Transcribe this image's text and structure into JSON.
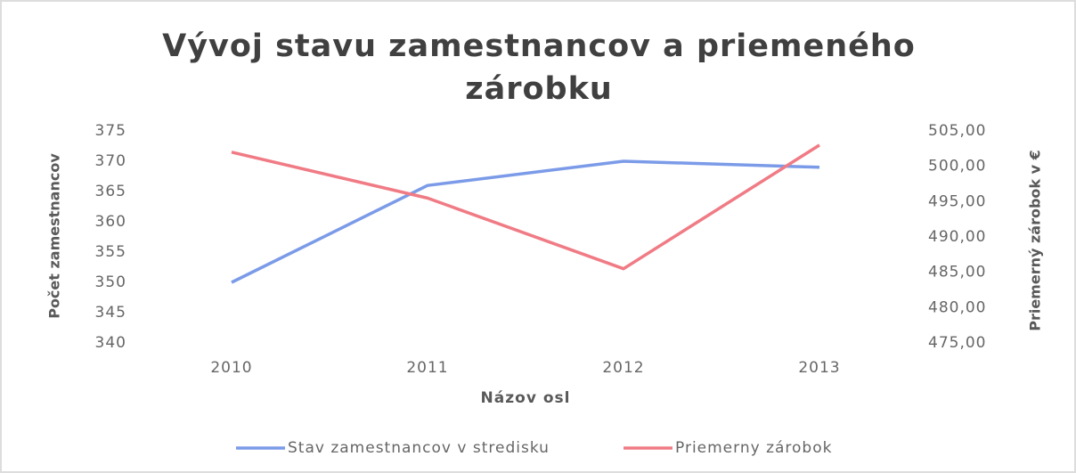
{
  "chart_data": {
    "type": "line",
    "title": "Vývoj stavu zamestnancov a priemeného zárobku",
    "x_label": "Názov osl",
    "y_label": "Počet zamestnancov",
    "y2_label": "Priemerný zárobok v €",
    "categories": [
      "2010",
      "2011",
      "2012",
      "2013"
    ],
    "series": [
      {
        "name": "Stav zamestnancov v stredisku",
        "color": "#7b9be8",
        "values": [
          350,
          366,
          370,
          369
        ]
      },
      {
        "name": "Priemerny zárobok",
        "color": "#f07b85",
        "axis": "y2",
        "values": [
          502,
          495.5,
          485.5,
          503
        ]
      }
    ],
    "ylim": [
      340,
      375
    ],
    "yticks": [
      340,
      345,
      350,
      355,
      360,
      365,
      370,
      375
    ],
    "y2lim": [
      475,
      505
    ],
    "y2ticks": [
      {
        "value": 475,
        "label": "475,00"
      },
      {
        "value": 480,
        "label": "480,00"
      },
      {
        "value": 485,
        "label": "485,00"
      },
      {
        "value": 490,
        "label": "490,00"
      },
      {
        "value": 495,
        "label": "495,00"
      },
      {
        "value": 500,
        "label": "500,00"
      },
      {
        "value": 505,
        "label": "505,00"
      }
    ],
    "grid": false,
    "legend": "bottom"
  }
}
